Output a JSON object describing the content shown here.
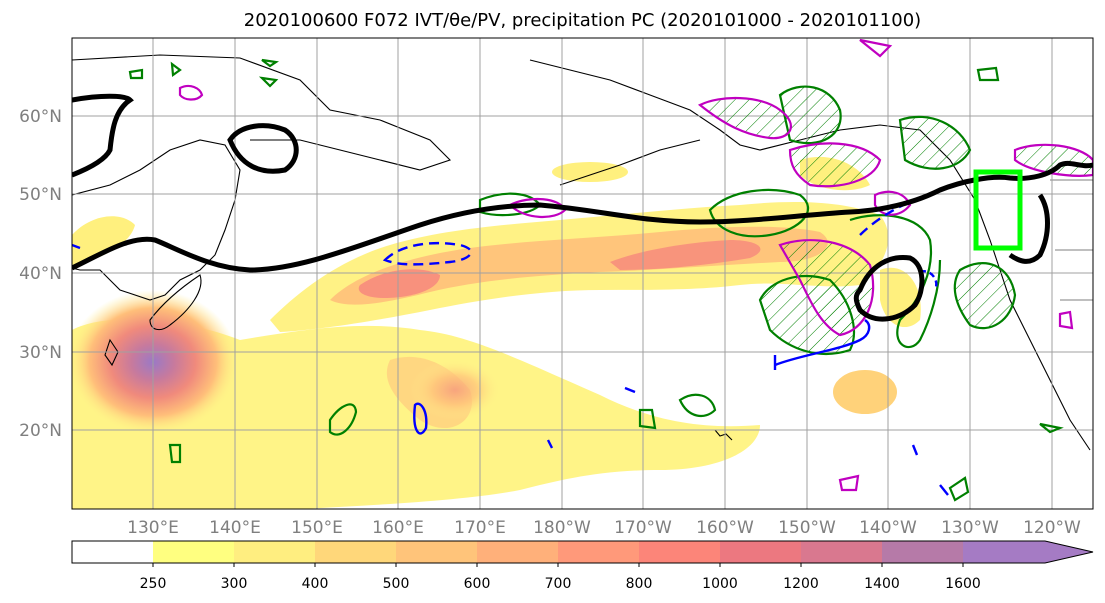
{
  "title": "2020100600 F072 IVT/θe/PV, precipitation PC (2020101000 - 2020101100)",
  "map": {
    "projection": "PlateCarree, Pacific-centered",
    "lon_range_deg_east": [
      120,
      245
    ],
    "lat_range_deg": [
      10,
      70
    ],
    "gridlines": true,
    "lat_labels": [
      "20°N",
      "30°N",
      "40°N",
      "50°N",
      "60°N"
    ],
    "lon_labels": [
      "130°E",
      "140°E",
      "150°E",
      "160°E",
      "170°E",
      "180°W",
      "170°W",
      "160°W",
      "150°W",
      "140°W",
      "130°W",
      "120°W"
    ],
    "colors": {
      "jet_contour": "#000000",
      "pv_contour": "#0000ff",
      "precip_contour": "#008000",
      "theta_e_contour": "#c000c0",
      "target_box": "#00ff00",
      "gridline": "#a0a0a0"
    }
  },
  "colorbar": {
    "variable": "IVT",
    "ticks": [
      "250",
      "300",
      "400",
      "500",
      "600",
      "700",
      "800",
      "1000",
      "1200",
      "1400",
      "1600"
    ],
    "colors": [
      "#ffffff",
      "#ffff80",
      "#ffee80",
      "#ffd77a",
      "#ffc47a",
      "#ffb07a",
      "#ff997a",
      "#fc8579",
      "#ec7880",
      "#d9788f",
      "#b67aa8",
      "#a57bc4"
    ]
  }
}
